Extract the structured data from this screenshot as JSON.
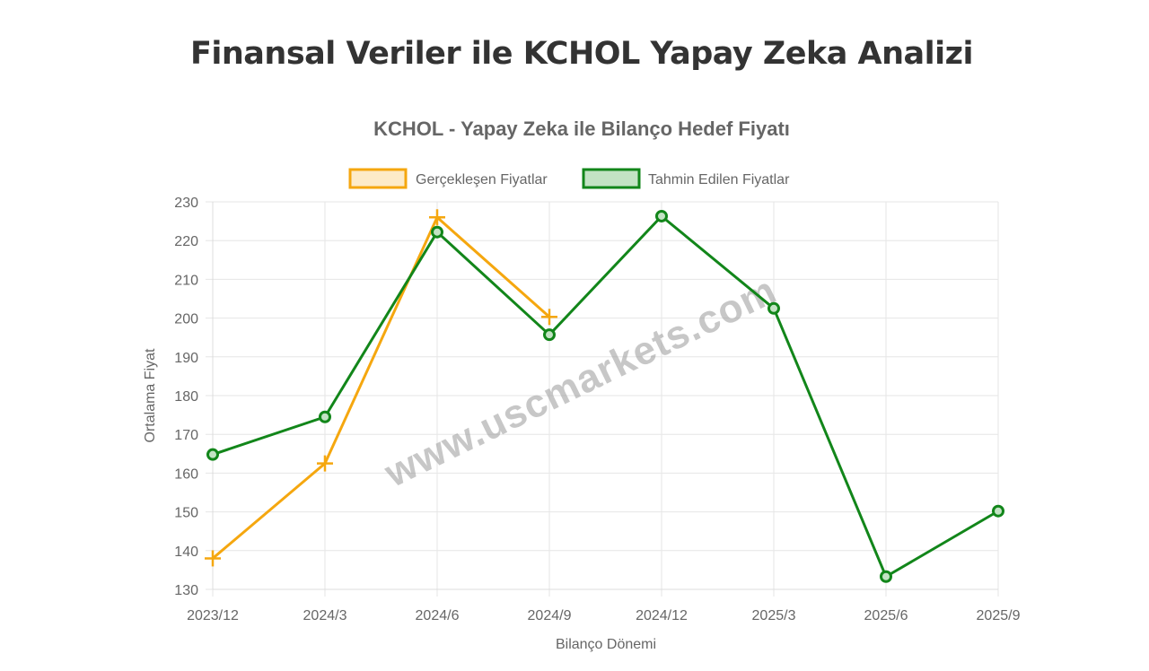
{
  "page": {
    "heading": "Finansal Veriler ile KCHOL Yapay Zeka Analizi",
    "watermark": "www.uscmarkets.com"
  },
  "colors": {
    "actual": "#F5A70F",
    "actual_fill": "#FDEBC8",
    "forecast": "#12861A",
    "forecast_fill": "#C3E3C4",
    "grid": "#e6e6e6",
    "text": "#666666"
  },
  "chart_data": {
    "type": "line",
    "title": "KCHOL - Yapay Zeka ile Bilanço Hedef Fiyatı",
    "xlabel": "Bilanço Dönemi",
    "ylabel": "Ortalama Fiyat",
    "categories": [
      "2023/12",
      "2024/3",
      "2024/6",
      "2024/9",
      "2024/12",
      "2025/3",
      "2025/6",
      "2025/9"
    ],
    "ylim": [
      130,
      230
    ],
    "yticks": [
      130,
      140,
      150,
      160,
      170,
      180,
      190,
      200,
      210,
      220,
      230
    ],
    "grid": true,
    "legend_position": "top",
    "series": [
      {
        "name": "Gerçekleşen Fiyatlar",
        "marker": "cross",
        "values": [
          138,
          162.5,
          226,
          200.3,
          null,
          null,
          null,
          null
        ]
      },
      {
        "name": "Tahmin Edilen Fiyatlar",
        "marker": "circle",
        "values": [
          164.8,
          174.5,
          222.2,
          195.7,
          226.3,
          202.5,
          133.3,
          150.2
        ]
      }
    ]
  }
}
